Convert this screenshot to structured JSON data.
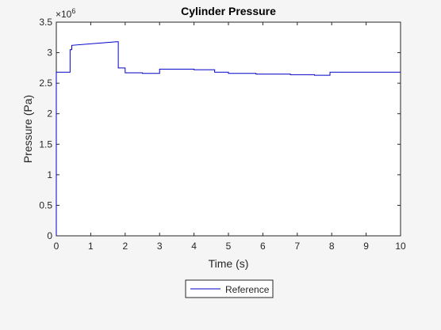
{
  "figure": {
    "background_color": "#f5f5f5",
    "axes_background_color": "#ffffff",
    "axis_color": "#262626",
    "line_color": "#0000c8"
  },
  "chart_data": {
    "type": "line",
    "title": "Cylinder Pressure",
    "xlabel": "Time (s)",
    "ylabel": "Pressure (Pa)",
    "y_exponent_label": "×10",
    "y_exponent_power": "6",
    "xlim": [
      0,
      10
    ],
    "ylim": [
      0,
      3.5
    ],
    "y_scale_factor": 1000000,
    "grid": false,
    "legend_position": "bottom-center",
    "x_ticks": [
      0,
      1,
      2,
      3,
      4,
      5,
      6,
      7,
      8,
      9,
      10
    ],
    "x_tick_labels": [
      "0",
      "1",
      "2",
      "3",
      "4",
      "5",
      "6",
      "7",
      "8",
      "9",
      "10"
    ],
    "y_ticks": [
      0,
      0.5,
      1,
      1.5,
      2,
      2.5,
      3,
      3.5
    ],
    "y_tick_labels": [
      "0",
      "0.5",
      "1",
      "1.5",
      "2",
      "2.5",
      "3",
      "3.5"
    ],
    "series": [
      {
        "name": "Reference",
        "color": "#0000c8",
        "step": true,
        "x": [
          0,
          0,
          0.4,
          0.4,
          0.45,
          0.45,
          1.75,
          1.8,
          1.8,
          2.0,
          2.0,
          2.2,
          2.2,
          2.5,
          2.5,
          3.0,
          3.0,
          3.5,
          3.5,
          4.0,
          4.0,
          4.6,
          4.6,
          5.0,
          5.0,
          5.8,
          5.8,
          6.8,
          6.8,
          7.5,
          7.5,
          7.95,
          7.95,
          10.0
        ],
        "y": [
          0,
          2.68,
          2.68,
          3.05,
          3.05,
          3.12,
          3.18,
          3.18,
          2.75,
          2.75,
          2.67,
          2.67,
          2.67,
          2.67,
          2.66,
          2.66,
          2.73,
          2.73,
          2.73,
          2.73,
          2.72,
          2.72,
          2.68,
          2.68,
          2.66,
          2.66,
          2.65,
          2.65,
          2.64,
          2.64,
          2.63,
          2.63,
          2.68,
          2.68
        ]
      }
    ]
  }
}
